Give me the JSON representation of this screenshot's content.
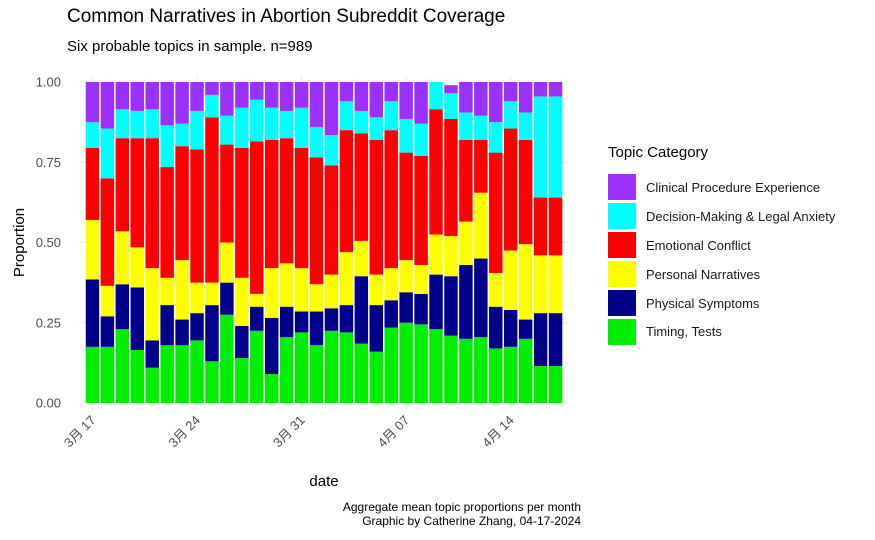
{
  "chart_data": {
    "type": "bar",
    "stacked": true,
    "title": "Common Narratives in Abortion Subreddit Coverage",
    "subtitle": "Six probable topics in sample. n=989",
    "xlabel": "date",
    "ylabel": "Proportion",
    "ylim": [
      0,
      1
    ],
    "yticks": [
      "0.00",
      "0.25",
      "0.50",
      "0.75",
      "1.00"
    ],
    "x_tick_labels": [
      {
        "label": "3月 17",
        "index": 0
      },
      {
        "label": "3月 24",
        "index": 7
      },
      {
        "label": "3月 31",
        "index": 14
      },
      {
        "label": "4月 07",
        "index": 21
      },
      {
        "label": "4月 14",
        "index": 28
      }
    ],
    "legend_title": "Topic Category",
    "legend_position": "right",
    "caption": [
      "Aggregate mean topic proportions per month",
      "Graphic by Catherine Zhang, 04-17-2024"
    ],
    "grid": true,
    "categories": [
      "03-17",
      "03-18",
      "03-19",
      "03-20",
      "03-21",
      "03-22",
      "03-23",
      "03-24",
      "03-25",
      "03-26",
      "03-27",
      "03-28",
      "03-29",
      "03-30",
      "03-31",
      "04-01",
      "04-02",
      "04-03",
      "04-04",
      "04-05",
      "04-06",
      "04-07",
      "04-08",
      "04-09",
      "04-10",
      "04-11",
      "04-12",
      "04-13",
      "04-14",
      "04-15",
      "04-16",
      "04-17"
    ],
    "series": [
      {
        "name": "Timing, Tests",
        "color": "#00EE00",
        "values": [
          0.175,
          0.175,
          0.23,
          0.165,
          0.11,
          0.18,
          0.18,
          0.195,
          0.13,
          0.275,
          0.14,
          0.225,
          0.09,
          0.205,
          0.22,
          0.18,
          0.225,
          0.22,
          0.185,
          0.16,
          0.235,
          0.25,
          0.245,
          0.23,
          0.21,
          0.2,
          0.205,
          0.17,
          0.175,
          0.2,
          0.115,
          0.115
        ]
      },
      {
        "name": "Physical Symptoms",
        "color": "#00008B",
        "values": [
          0.21,
          0.095,
          0.14,
          0.195,
          0.085,
          0.125,
          0.08,
          0.085,
          0.175,
          0.1,
          0.1,
          0.075,
          0.175,
          0.095,
          0.065,
          0.105,
          0.07,
          0.085,
          0.21,
          0.145,
          0.085,
          0.095,
          0.095,
          0.17,
          0.185,
          0.23,
          0.245,
          0.13,
          0.115,
          0.06,
          0.165,
          0.165
        ]
      },
      {
        "name": "Personal Narratives",
        "color": "#FFFF00",
        "values": [
          0.185,
          0.095,
          0.165,
          0.125,
          0.225,
          0.085,
          0.185,
          0.095,
          0.07,
          0.125,
          0.15,
          0.04,
          0.155,
          0.135,
          0.135,
          0.085,
          0.105,
          0.165,
          0.11,
          0.095,
          0.1,
          0.1,
          0.09,
          0.125,
          0.125,
          0.135,
          0.205,
          0.105,
          0.185,
          0.235,
          0.18,
          0.18
        ]
      },
      {
        "name": "Emotional Conflict",
        "color": "#FF0000",
        "values": [
          0.225,
          0.335,
          0.29,
          0.34,
          0.405,
          0.345,
          0.355,
          0.415,
          0.515,
          0.305,
          0.405,
          0.475,
          0.4,
          0.39,
          0.375,
          0.395,
          0.34,
          0.38,
          0.335,
          0.42,
          0.43,
          0.335,
          0.34,
          0.39,
          0.365,
          0.255,
          0.165,
          0.375,
          0.38,
          0.325,
          0.18,
          0.18
        ]
      },
      {
        "name": "Decision-Making & Legal Anxiety",
        "color": "#00FFFF",
        "values": [
          0.08,
          0.155,
          0.09,
          0.085,
          0.09,
          0.13,
          0.07,
          0.12,
          0.07,
          0.09,
          0.125,
          0.13,
          0.1,
          0.085,
          0.125,
          0.095,
          0.095,
          0.09,
          0.07,
          0.07,
          0.09,
          0.105,
          0.1,
          0.085,
          0.08,
          0.085,
          0.075,
          0.095,
          0.085,
          0.085,
          0.315,
          0.315
        ]
      },
      {
        "name": "Clinical Procedure Experience",
        "color": "#9B30FF",
        "values": [
          0.125,
          0.145,
          0.085,
          0.09,
          0.085,
          0.135,
          0.13,
          0.09,
          0.04,
          0.105,
          0.08,
          0.055,
          0.08,
          0.09,
          0.08,
          0.14,
          0.165,
          0.06,
          0.09,
          0.11,
          0.06,
          0.115,
          0.13,
          0.0,
          0.025,
          0.095,
          0.105,
          0.125,
          0.06,
          0.095,
          0.045,
          0.045
        ]
      }
    ]
  }
}
